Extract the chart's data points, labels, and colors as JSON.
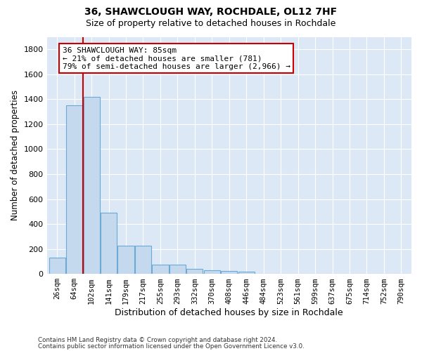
{
  "title1": "36, SHAWCLOUGH WAY, ROCHDALE, OL12 7HF",
  "title2": "Size of property relative to detached houses in Rochdale",
  "xlabel": "Distribution of detached houses by size in Rochdale",
  "ylabel": "Number of detached properties",
  "footer1": "Contains HM Land Registry data © Crown copyright and database right 2024.",
  "footer2": "Contains public sector information licensed under the Open Government Licence v3.0.",
  "bar_values": [
    130,
    1350,
    1420,
    490,
    225,
    225,
    75,
    75,
    40,
    30,
    25,
    20,
    0,
    0,
    0,
    0,
    0,
    0,
    0,
    0,
    0
  ],
  "bar_labels": [
    "26sqm",
    "64sqm",
    "102sqm",
    "141sqm",
    "179sqm",
    "217sqm",
    "255sqm",
    "293sqm",
    "332sqm",
    "370sqm",
    "408sqm",
    "446sqm",
    "484sqm",
    "523sqm",
    "561sqm",
    "599sqm",
    "637sqm",
    "675sqm",
    "714sqm",
    "752sqm",
    "790sqm"
  ],
  "bar_color": "#c5d9ee",
  "bar_edge_color": "#6aaad4",
  "vline_x": 1.5,
  "vline_color": "#cc0000",
  "annotation_text": "36 SHAWCLOUGH WAY: 85sqm\n← 21% of detached houses are smaller (781)\n79% of semi-detached houses are larger (2,966) →",
  "annotation_box_facecolor": "#ffffff",
  "annotation_box_edgecolor": "#cc0000",
  "ylim": [
    0,
    1900
  ],
  "yticks": [
    0,
    200,
    400,
    600,
    800,
    1000,
    1200,
    1400,
    1600,
    1800
  ],
  "background_color": "#ffffff",
  "plot_background": "#dce8f5",
  "grid_color": "#ffffff",
  "title_fontsize": 10,
  "subtitle_fontsize": 9
}
